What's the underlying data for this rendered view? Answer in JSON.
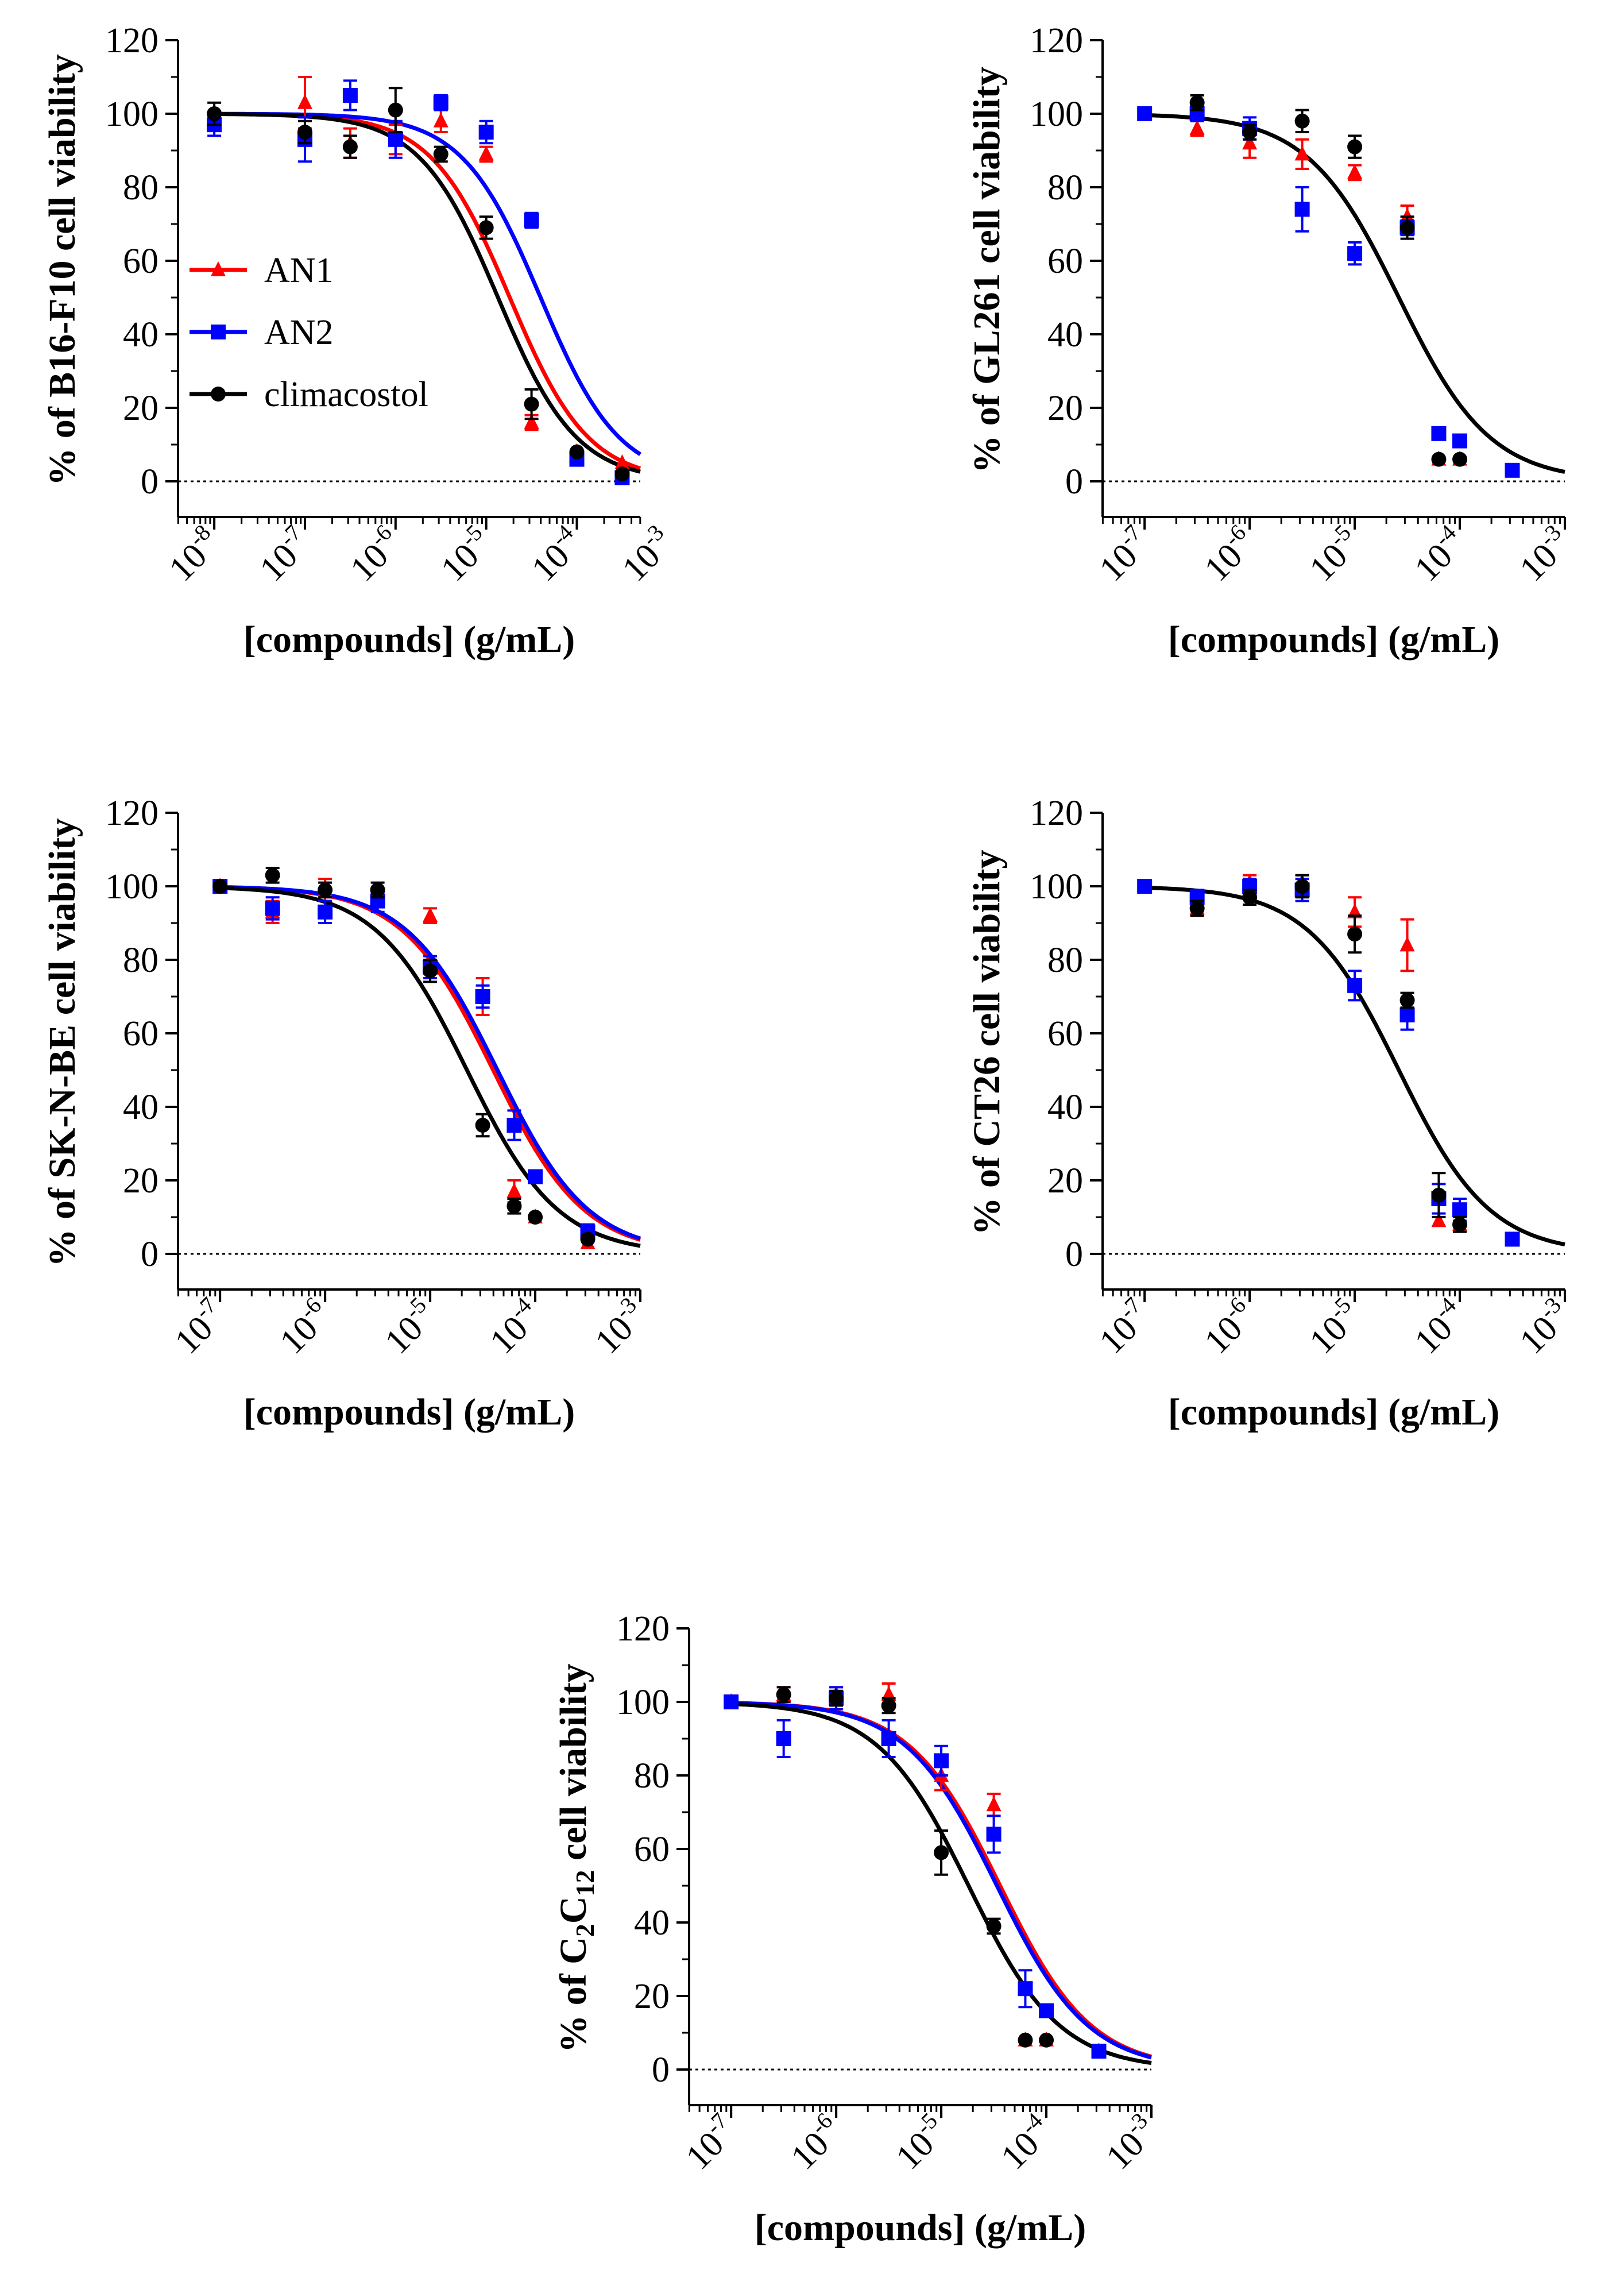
{
  "colors": {
    "AN1": "#ff0000",
    "AN2": "#0000ff",
    "climacostol": "#000000"
  },
  "legend": [
    {
      "name": "AN1",
      "color": "#ff0000",
      "marker": "triangle"
    },
    {
      "name": "AN2",
      "color": "#0000ff",
      "marker": "square"
    },
    {
      "name": "climacostol",
      "color": "#000000",
      "marker": "circle"
    }
  ],
  "chart_data": [
    {
      "id": "b16",
      "type": "scatter",
      "title": "",
      "ylabel": {
        "prefix": "% of ",
        "cell": "B16-F10",
        "suffix": " cell viability"
      },
      "xlabel": "[compounds] (g/mL)",
      "xscale": "log",
      "xlim_exp": [
        -8.4,
        -3.3
      ],
      "xticks_exp": [
        -8,
        -7,
        -6,
        -5,
        -4,
        -3
      ],
      "ylim": [
        -5,
        120
      ],
      "yticks": [
        0,
        20,
        40,
        60,
        80,
        100,
        120
      ],
      "reference_line": 0,
      "legend_position": "left-middle",
      "series": [
        {
          "name": "AN1",
          "color": "#ff0000",
          "marker": "triangle",
          "x_exp": [
            -8,
            -7,
            -6.5,
            -6,
            -5.5,
            -5,
            -4.5,
            -4,
            -3.5
          ],
          "y": [
            98,
            103,
            92,
            93,
            98,
            89,
            16,
            8,
            5
          ],
          "err": [
            2,
            7,
            4,
            4,
            3,
            2,
            2,
            1,
            1
          ],
          "fit": {
            "top": 100,
            "bottom": 0,
            "log_ic50": -4.74,
            "hill": 1
          }
        },
        {
          "name": "AN2",
          "color": "#0000ff",
          "marker": "square",
          "x_exp": [
            -8,
            -7,
            -6.5,
            -6,
            -5.5,
            -5,
            -4.5,
            -4,
            -3.5
          ],
          "y": [
            97,
            93,
            105,
            93,
            103,
            95,
            71,
            6,
            1
          ],
          "err": [
            3,
            6,
            4,
            5,
            2,
            3,
            2,
            1,
            1
          ],
          "fit": {
            "top": 100,
            "bottom": 0,
            "log_ic50": -4.4,
            "hill": 1
          }
        },
        {
          "name": "climacostol",
          "color": "#000000",
          "marker": "circle",
          "x_exp": [
            -8,
            -7,
            -6.5,
            -6,
            -5.5,
            -5,
            -4.5,
            -4,
            -3.5
          ],
          "y": [
            100,
            95,
            91,
            101,
            89,
            69,
            21,
            8,
            2
          ],
          "err": [
            3,
            3,
            3,
            6,
            2,
            3,
            4,
            1,
            1
          ],
          "fit": {
            "top": 100,
            "bottom": 0,
            "log_ic50": -4.87,
            "hill": 1
          }
        }
      ]
    },
    {
      "id": "gl261",
      "type": "scatter",
      "title": "",
      "ylabel": {
        "prefix": "% of ",
        "cell": "GL261",
        "suffix": " cell viability"
      },
      "xlabel": "[compounds] (g/mL)",
      "xscale": "log",
      "xlim_exp": [
        -7.4,
        -3.0
      ],
      "xticks_exp": [
        -7,
        -6,
        -5,
        -4,
        -3
      ],
      "ylim": [
        -5,
        120
      ],
      "yticks": [
        0,
        20,
        40,
        60,
        80,
        100,
        120
      ],
      "reference_line": 0,
      "series": [
        {
          "name": "AN1",
          "color": "#ff0000",
          "marker": "triangle",
          "x_exp": [
            -6.5,
            -6,
            -5.5,
            -5,
            -4.5,
            -4.2,
            -4
          ],
          "y": [
            96,
            92,
            89,
            84,
            72,
            6,
            6
          ],
          "err": [
            2,
            4,
            4,
            2,
            3,
            1,
            1
          ]
        },
        {
          "name": "AN2",
          "color": "#0000ff",
          "marker": "square",
          "x_exp": [
            -7,
            -6.5,
            -6,
            -5.5,
            -5,
            -4.5,
            -4.2,
            -4,
            -3.5
          ],
          "y": [
            100,
            100,
            96,
            74,
            62,
            69,
            13,
            11,
            3
          ],
          "err": [
            1,
            2,
            3,
            6,
            3,
            2,
            1,
            1,
            1
          ]
        },
        {
          "name": "climacostol",
          "color": "#000000",
          "marker": "circle",
          "x_exp": [
            -6.5,
            -6,
            -5.5,
            -5,
            -4.5,
            -4.2,
            -4
          ],
          "y": [
            103,
            95,
            98,
            91,
            69,
            6,
            6
          ],
          "err": [
            2,
            2,
            3,
            3,
            3,
            1,
            1
          ],
          "fit": {
            "top": 100,
            "bottom": 0,
            "log_ic50": -4.58,
            "hill": 1
          }
        }
      ]
    },
    {
      "id": "skn",
      "type": "scatter",
      "title": "",
      "ylabel": {
        "prefix": "% of ",
        "cell": "SK-N-BE",
        "suffix": " cell viability"
      },
      "xlabel": "[compounds] (g/mL)",
      "xscale": "log",
      "xlim_exp": [
        -7.4,
        -3.0
      ],
      "xticks_exp": [
        -7,
        -6,
        -5,
        -4,
        -3
      ],
      "ylim": [
        -5,
        120
      ],
      "yticks": [
        0,
        20,
        40,
        60,
        80,
        100,
        120
      ],
      "reference_line": 0,
      "series": [
        {
          "name": "AN1",
          "color": "#ff0000",
          "marker": "triangle",
          "x_exp": [
            -7,
            -6.5,
            -6,
            -5.5,
            -5,
            -4.5,
            -4.2,
            -4,
            -3.5
          ],
          "y": [
            100,
            93,
            99,
            97,
            92,
            70,
            17,
            10,
            3
          ],
          "err": [
            1,
            3,
            3,
            2,
            2,
            5,
            3,
            1,
            1
          ],
          "fit": {
            "top": 100,
            "bottom": 0,
            "log_ic50": -4.4,
            "hill": 1
          }
        },
        {
          "name": "AN2",
          "color": "#0000ff",
          "marker": "square",
          "x_exp": [
            -7,
            -6.5,
            -6,
            -5.5,
            -5,
            -4.5,
            -4.2,
            -4,
            -3.5
          ],
          "y": [
            100,
            94,
            93,
            96,
            78,
            70,
            35,
            21,
            6
          ],
          "err": [
            1,
            3,
            3,
            3,
            3,
            3,
            4,
            1,
            2
          ],
          "fit": {
            "top": 100,
            "bottom": 0,
            "log_ic50": -4.36,
            "hill": 1
          }
        },
        {
          "name": "climacostol",
          "color": "#000000",
          "marker": "circle",
          "x_exp": [
            -7,
            -6.5,
            -6,
            -5.5,
            -5,
            -4.5,
            -4.2,
            -4,
            -3.5
          ],
          "y": [
            100,
            103,
            99,
            99,
            77,
            35,
            13,
            10,
            4
          ],
          "err": [
            1,
            2,
            2,
            2,
            3,
            3,
            2,
            1,
            1
          ],
          "fit": {
            "top": 100,
            "bottom": 0,
            "log_ic50": -4.65,
            "hill": 1
          }
        }
      ]
    },
    {
      "id": "ct26",
      "type": "scatter",
      "title": "",
      "ylabel": {
        "prefix": "% of ",
        "cell": "CT26",
        "suffix": " cell viability"
      },
      "xlabel": "[compounds] (g/mL)",
      "xscale": "log",
      "xlim_exp": [
        -7.4,
        -3.0
      ],
      "xticks_exp": [
        -7,
        -6,
        -5,
        -4,
        -3
      ],
      "ylim": [
        -5,
        120
      ],
      "yticks": [
        0,
        20,
        40,
        60,
        80,
        100,
        120
      ],
      "reference_line": 0,
      "series": [
        {
          "name": "AN1",
          "color": "#ff0000",
          "marker": "triangle",
          "x_exp": [
            -6.5,
            -6,
            -5.5,
            -5,
            -4.5,
            -4.2,
            -4
          ],
          "y": [
            94,
            101,
            101,
            93,
            84,
            9,
            8
          ],
          "err": [
            2,
            2,
            2,
            4,
            7,
            1,
            1
          ]
        },
        {
          "name": "AN2",
          "color": "#0000ff",
          "marker": "square",
          "x_exp": [
            -7,
            -6.5,
            -6,
            -5.5,
            -5,
            -4.5,
            -4.2,
            -4,
            -3.5
          ],
          "y": [
            100,
            97,
            100,
            99,
            73,
            65,
            15,
            12,
            4
          ],
          "err": [
            1,
            2,
            2,
            3,
            4,
            4,
            4,
            3,
            1
          ]
        },
        {
          "name": "climacostol",
          "color": "#000000",
          "marker": "circle",
          "x_exp": [
            -6.5,
            -6,
            -5.5,
            -5,
            -4.5,
            -4.2,
            -4
          ],
          "y": [
            94,
            97,
            100,
            87,
            69,
            16,
            8
          ],
          "err": [
            2,
            2,
            3,
            5,
            2,
            6,
            2
          ],
          "fit": {
            "top": 100,
            "bottom": 0,
            "log_ic50": -4.58,
            "hill": 1
          }
        }
      ]
    },
    {
      "id": "c2c12",
      "type": "scatter",
      "title": "",
      "ylabel": {
        "prefix": "% of ",
        "c": "C",
        "sub1": "2",
        "c2": "C",
        "sub2": "12",
        "suffix": " cell viability"
      },
      "xlabel": "[compounds] (g/mL)",
      "xscale": "log",
      "xlim_exp": [
        -7.4,
        -3.0
      ],
      "xticks_exp": [
        -7,
        -6,
        -5,
        -4,
        -3
      ],
      "ylim": [
        -5,
        120
      ],
      "yticks": [
        0,
        20,
        40,
        60,
        80,
        100,
        120
      ],
      "reference_line": 0,
      "series": [
        {
          "name": "AN1",
          "color": "#ff0000",
          "marker": "triangle",
          "x_exp": [
            -7,
            -6.5,
            -6,
            -5.5,
            -5,
            -4.5,
            -4.2,
            -4,
            -3.5
          ],
          "y": [
            100,
            102,
            102,
            102,
            80,
            72,
            8,
            8,
            5
          ],
          "err": [
            1,
            2,
            2,
            3,
            4,
            3,
            1,
            1,
            1
          ],
          "fit": {
            "top": 100,
            "bottom": 0,
            "log_ic50": -4.44,
            "hill": 1
          }
        },
        {
          "name": "AN2",
          "color": "#0000ff",
          "marker": "square",
          "x_exp": [
            -7,
            -6.5,
            -6,
            -5.5,
            -5,
            -4.5,
            -4.2,
            -4,
            -3.5
          ],
          "y": [
            100,
            90,
            101,
            90,
            84,
            64,
            22,
            16,
            5
          ],
          "err": [
            1,
            5,
            3,
            5,
            4,
            5,
            5,
            1,
            1
          ],
          "fit": {
            "top": 100,
            "bottom": 0,
            "log_ic50": -4.47,
            "hill": 1
          }
        },
        {
          "name": "climacostol",
          "color": "#000000",
          "marker": "circle",
          "x_exp": [
            -6.5,
            -6,
            -5.5,
            -5,
            -4.5,
            -4.2,
            -4
          ],
          "y": [
            102,
            101,
            99,
            59,
            39,
            8,
            8
          ],
          "err": [
            2,
            2,
            2,
            6,
            2,
            1,
            1
          ],
          "fit": {
            "top": 100,
            "bottom": 0,
            "log_ic50": -4.74,
            "hill": 1
          }
        }
      ]
    }
  ]
}
